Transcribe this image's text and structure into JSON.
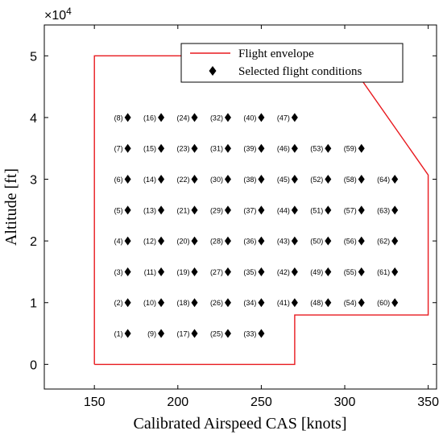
{
  "chart_data": {
    "type": "scatter",
    "xlabel": "Calibrated Airspeed CAS [knots]",
    "ylabel": "Altitude [ft]",
    "y_exponent_label": "×10",
    "y_exponent_power": "4",
    "xlim": [
      120,
      355
    ],
    "ylim": [
      -4000,
      55000
    ],
    "xticks": [
      150,
      200,
      250,
      300,
      350
    ],
    "yticks": [
      0,
      10000,
      20000,
      30000,
      40000,
      50000
    ],
    "ytick_labels": [
      "0",
      "1",
      "2",
      "3",
      "4",
      "5"
    ],
    "grid": false,
    "legend_position": "top-right",
    "series": [
      {
        "name": "Flight envelope",
        "kind": "line",
        "color": "#e8191e",
        "x": [
          150,
          270,
          270,
          350,
          350,
          300,
          150,
          150
        ],
        "y": [
          0,
          0,
          8000,
          8000,
          30700,
          50000,
          50000,
          0
        ]
      },
      {
        "name": "Selected flight conditions",
        "kind": "marker",
        "marker": "diamond",
        "color": "#000000",
        "points": [
          {
            "label": "(1)",
            "x": 170,
            "y": 5000
          },
          {
            "label": "(2)",
            "x": 170,
            "y": 10000
          },
          {
            "label": "(3)",
            "x": 170,
            "y": 15000
          },
          {
            "label": "(4)",
            "x": 170,
            "y": 20000
          },
          {
            "label": "(5)",
            "x": 170,
            "y": 25000
          },
          {
            "label": "(6)",
            "x": 170,
            "y": 30000
          },
          {
            "label": "(7)",
            "x": 170,
            "y": 35000
          },
          {
            "label": "(8)",
            "x": 170,
            "y": 40000
          },
          {
            "label": "(9)",
            "x": 190,
            "y": 5000
          },
          {
            "label": "(10)",
            "x": 190,
            "y": 10000
          },
          {
            "label": "(11)",
            "x": 190,
            "y": 15000
          },
          {
            "label": "(12)",
            "x": 190,
            "y": 20000
          },
          {
            "label": "(13)",
            "x": 190,
            "y": 25000
          },
          {
            "label": "(14)",
            "x": 190,
            "y": 30000
          },
          {
            "label": "(15)",
            "x": 190,
            "y": 35000
          },
          {
            "label": "(16)",
            "x": 190,
            "y": 40000
          },
          {
            "label": "(17)",
            "x": 210,
            "y": 5000
          },
          {
            "label": "(18)",
            "x": 210,
            "y": 10000
          },
          {
            "label": "(19)",
            "x": 210,
            "y": 15000
          },
          {
            "label": "(20)",
            "x": 210,
            "y": 20000
          },
          {
            "label": "(21)",
            "x": 210,
            "y": 25000
          },
          {
            "label": "(22)",
            "x": 210,
            "y": 30000
          },
          {
            "label": "(23)",
            "x": 210,
            "y": 35000
          },
          {
            "label": "(24)",
            "x": 210,
            "y": 40000
          },
          {
            "label": "(25)",
            "x": 230,
            "y": 5000
          },
          {
            "label": "(26)",
            "x": 230,
            "y": 10000
          },
          {
            "label": "(27)",
            "x": 230,
            "y": 15000
          },
          {
            "label": "(28)",
            "x": 230,
            "y": 20000
          },
          {
            "label": "(29)",
            "x": 230,
            "y": 25000
          },
          {
            "label": "(30)",
            "x": 230,
            "y": 30000
          },
          {
            "label": "(31)",
            "x": 230,
            "y": 35000
          },
          {
            "label": "(32)",
            "x": 230,
            "y": 40000
          },
          {
            "label": "(33)",
            "x": 250,
            "y": 5000
          },
          {
            "label": "(34)",
            "x": 250,
            "y": 10000
          },
          {
            "label": "(35)",
            "x": 250,
            "y": 15000
          },
          {
            "label": "(36)",
            "x": 250,
            "y": 20000
          },
          {
            "label": "(37)",
            "x": 250,
            "y": 25000
          },
          {
            "label": "(38)",
            "x": 250,
            "y": 30000
          },
          {
            "label": "(39)",
            "x": 250,
            "y": 35000
          },
          {
            "label": "(40)",
            "x": 250,
            "y": 40000
          },
          {
            "label": "(41)",
            "x": 270,
            "y": 10000
          },
          {
            "label": "(42)",
            "x": 270,
            "y": 15000
          },
          {
            "label": "(43)",
            "x": 270,
            "y": 20000
          },
          {
            "label": "(44)",
            "x": 270,
            "y": 25000
          },
          {
            "label": "(45)",
            "x": 270,
            "y": 30000
          },
          {
            "label": "(46)",
            "x": 270,
            "y": 35000
          },
          {
            "label": "(47)",
            "x": 270,
            "y": 40000
          },
          {
            "label": "(48)",
            "x": 290,
            "y": 10000
          },
          {
            "label": "(49)",
            "x": 290,
            "y": 15000
          },
          {
            "label": "(50)",
            "x": 290,
            "y": 20000
          },
          {
            "label": "(51)",
            "x": 290,
            "y": 25000
          },
          {
            "label": "(52)",
            "x": 290,
            "y": 30000
          },
          {
            "label": "(53)",
            "x": 290,
            "y": 35000
          },
          {
            "label": "(54)",
            "x": 310,
            "y": 10000
          },
          {
            "label": "(55)",
            "x": 310,
            "y": 15000
          },
          {
            "label": "(56)",
            "x": 310,
            "y": 20000
          },
          {
            "label": "(57)",
            "x": 310,
            "y": 25000
          },
          {
            "label": "(58)",
            "x": 310,
            "y": 30000
          },
          {
            "label": "(59)",
            "x": 310,
            "y": 35000
          },
          {
            "label": "(60)",
            "x": 330,
            "y": 10000
          },
          {
            "label": "(61)",
            "x": 330,
            "y": 15000
          },
          {
            "label": "(62)",
            "x": 330,
            "y": 20000
          },
          {
            "label": "(63)",
            "x": 330,
            "y": 25000
          },
          {
            "label": "(64)",
            "x": 330,
            "y": 30000
          }
        ]
      }
    ]
  }
}
